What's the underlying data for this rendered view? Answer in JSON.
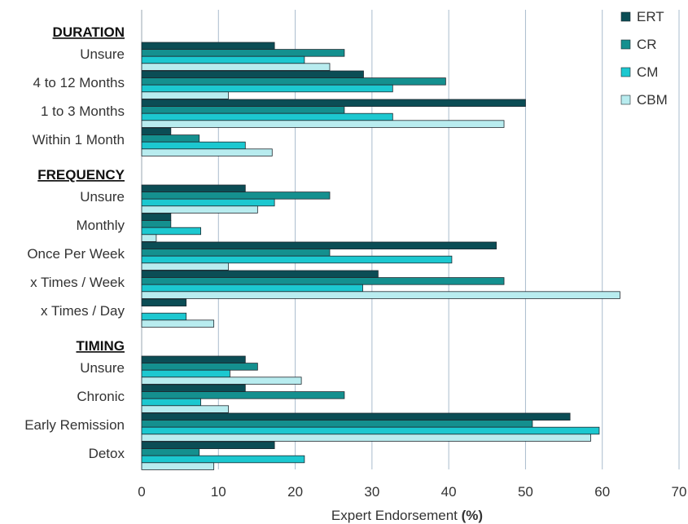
{
  "chart_data": {
    "type": "bar",
    "orientation": "horizontal",
    "xlabel": "Expert Endorsement",
    "xlabel_suffix": "(%)",
    "xlim": [
      0,
      70
    ],
    "xticks": [
      0,
      10,
      20,
      30,
      40,
      50,
      60,
      70
    ],
    "grid": "vertical",
    "legend_position": "top-right",
    "series": [
      {
        "name": "ERT",
        "color": "#0b4d55"
      },
      {
        "name": "CR",
        "color": "#14908f"
      },
      {
        "name": "CM",
        "color": "#1cc8d0"
      },
      {
        "name": "CBM",
        "color": "#b8ecef"
      }
    ],
    "groups": [
      {
        "name": "DURATION",
        "categories": [
          {
            "label": "Unsure",
            "values": [
              17.3,
              26.4,
              21.2,
              24.5
            ]
          },
          {
            "label": "4 to 12 Months",
            "values": [
              28.9,
              39.6,
              32.7,
              11.3
            ]
          },
          {
            "label": "1 to 3 Months",
            "values": [
              50.0,
              26.4,
              32.7,
              47.2
            ]
          },
          {
            "label": "Within 1 Month",
            "values": [
              3.8,
              7.5,
              13.5,
              17.0
            ]
          }
        ]
      },
      {
        "name": "FREQUENCY",
        "categories": [
          {
            "label": "Unsure",
            "values": [
              13.5,
              24.5,
              17.3,
              15.1
            ]
          },
          {
            "label": "Monthly",
            "values": [
              3.8,
              3.8,
              7.7,
              1.9
            ]
          },
          {
            "label": "Once Per Week",
            "values": [
              46.2,
              24.5,
              40.4,
              11.3
            ]
          },
          {
            "label": "x Times / Week",
            "values": [
              30.8,
              47.2,
              28.8,
              62.3
            ]
          },
          {
            "label": "x Times / Day",
            "values": [
              5.8,
              0,
              5.8,
              9.4
            ]
          }
        ]
      },
      {
        "name": "TIMING",
        "categories": [
          {
            "label": "Unsure",
            "values": [
              13.5,
              15.1,
              11.5,
              20.8
            ]
          },
          {
            "label": "Chronic",
            "values": [
              13.5,
              26.4,
              7.7,
              11.3
            ]
          },
          {
            "label": "Early Remission",
            "values": [
              55.8,
              50.9,
              59.6,
              58.5
            ]
          },
          {
            "label": "Detox",
            "values": [
              17.3,
              7.5,
              21.2,
              9.4
            ]
          }
        ]
      }
    ]
  }
}
